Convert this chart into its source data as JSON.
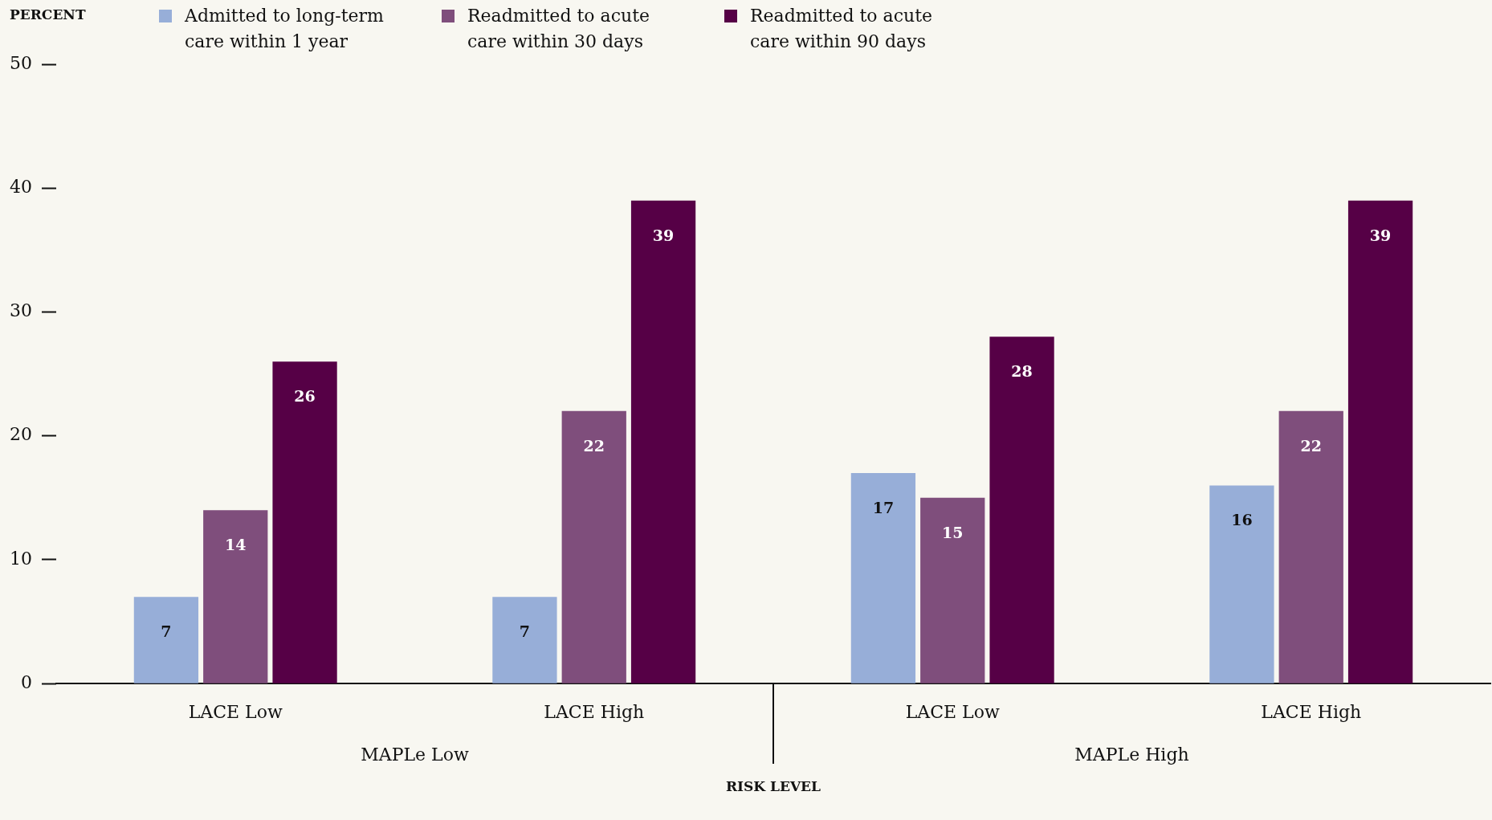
{
  "chart_data": {
    "type": "bar",
    "ylabel": "PERCENT",
    "xlabel": "RISK LEVEL",
    "categories": [
      "LACE Low",
      "LACE High",
      "LACE Low",
      "LACE High"
    ],
    "series": [
      {
        "name": "Admitted to long-term care within 1 year",
        "color": "#97aed8",
        "values": [
          7,
          7,
          17,
          16
        ]
      },
      {
        "name": "Readmitted to acute care within 30 days",
        "color": "#7f4e7c",
        "values": [
          14,
          22,
          15,
          22
        ]
      },
      {
        "name": "Readmitted to acute care within 90 days",
        "color": "#560046",
        "values": [
          26,
          39,
          28,
          39
        ]
      }
    ],
    "annotations": [
      "MAPLe Low",
      "MAPLe High"
    ],
    "ylim": [
      0,
      50
    ],
    "yticks": [
      0,
      10,
      20,
      30,
      40,
      50
    ],
    "grid": false,
    "legend": "top left",
    "data_labels": true
  }
}
